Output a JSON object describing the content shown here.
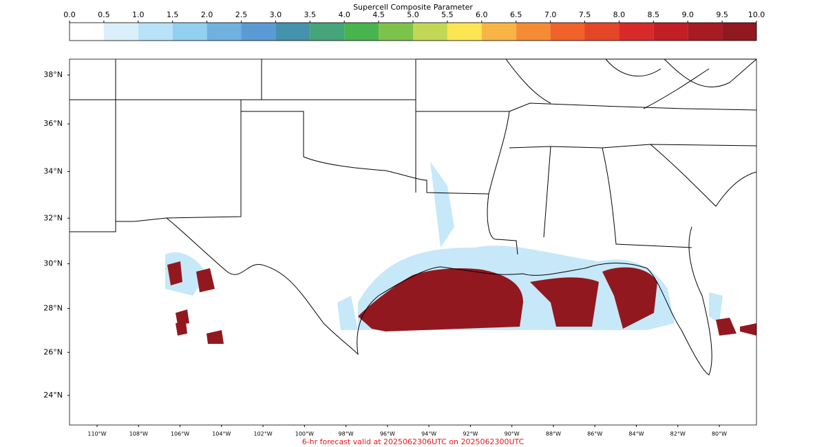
{
  "colorbar": {
    "title": "Supercell Composite Parameter",
    "ticks": [
      {
        "value": 0,
        "label": "0.0"
      },
      {
        "value": 0.5,
        "label": "0.5"
      },
      {
        "value": 1,
        "label": "1.0"
      },
      {
        "value": 1.5,
        "label": "1.5"
      },
      {
        "value": 2,
        "label": "2.0"
      },
      {
        "value": 2.5,
        "label": "2.5"
      },
      {
        "value": 3,
        "label": "3.0"
      },
      {
        "value": 3.5,
        "label": "3.5"
      },
      {
        "value": 4,
        "label": "4.0"
      },
      {
        "value": 4.5,
        "label": "4.5"
      },
      {
        "value": 5,
        "label": "5.0"
      },
      {
        "value": 5.5,
        "label": "5.5"
      },
      {
        "value": 6,
        "label": "6.0"
      },
      {
        "value": 6.5,
        "label": "6.5"
      },
      {
        "value": 7,
        "label": "7.0"
      },
      {
        "value": 7.5,
        "label": "7.5"
      },
      {
        "value": 8,
        "label": "8.0"
      },
      {
        "value": 8.5,
        "label": "8.5"
      },
      {
        "value": 9,
        "label": "9.0"
      },
      {
        "value": 9.5,
        "label": "9.5"
      },
      {
        "value": 10,
        "label": "10.0"
      }
    ],
    "colors": [
      "#ffffff",
      "#dbeffb",
      "#b8e2f7",
      "#93cfef",
      "#6fb2e0",
      "#5b9bd5",
      "#4592ad",
      "#45a47a",
      "#48b44d",
      "#7dc24b",
      "#c2d855",
      "#fce553",
      "#f8b546",
      "#f58c34",
      "#f06229",
      "#e54628",
      "#d82a29",
      "#c21e26",
      "#a81b22",
      "#92181f"
    ]
  },
  "map": {
    "lat_ticks": [
      {
        "value": 38,
        "label": "38°N"
      },
      {
        "value": 36,
        "label": "36°N"
      },
      {
        "value": 34,
        "label": "34°N"
      },
      {
        "value": 32,
        "label": "32°N"
      },
      {
        "value": 30,
        "label": "30°N"
      },
      {
        "value": 28,
        "label": "28°N"
      },
      {
        "value": 26,
        "label": "26°N"
      },
      {
        "value": 24,
        "label": "24°N"
      }
    ],
    "lon_ticks": [
      {
        "value": -110,
        "label": "110°W"
      },
      {
        "value": -108,
        "label": "108°W"
      },
      {
        "value": -106,
        "label": "106°W"
      },
      {
        "value": -104,
        "label": "104°W"
      },
      {
        "value": -102,
        "label": "102°W"
      },
      {
        "value": -100,
        "label": "100°W"
      },
      {
        "value": -98,
        "label": "98°W"
      },
      {
        "value": -96,
        "label": "96°W"
      },
      {
        "value": -94,
        "label": "94°W"
      },
      {
        "value": -92,
        "label": "92°W"
      },
      {
        "value": -90,
        "label": "90°W"
      },
      {
        "value": -88,
        "label": "88°W"
      },
      {
        "value": -86,
        "label": "86°W"
      },
      {
        "value": -84,
        "label": "84°W"
      },
      {
        "value": -82,
        "label": "82°W"
      },
      {
        "value": -80,
        "label": "80°W"
      }
    ]
  },
  "footer": "6-hr forecast valid at 2025062306UTC on 2025062300UTC"
}
